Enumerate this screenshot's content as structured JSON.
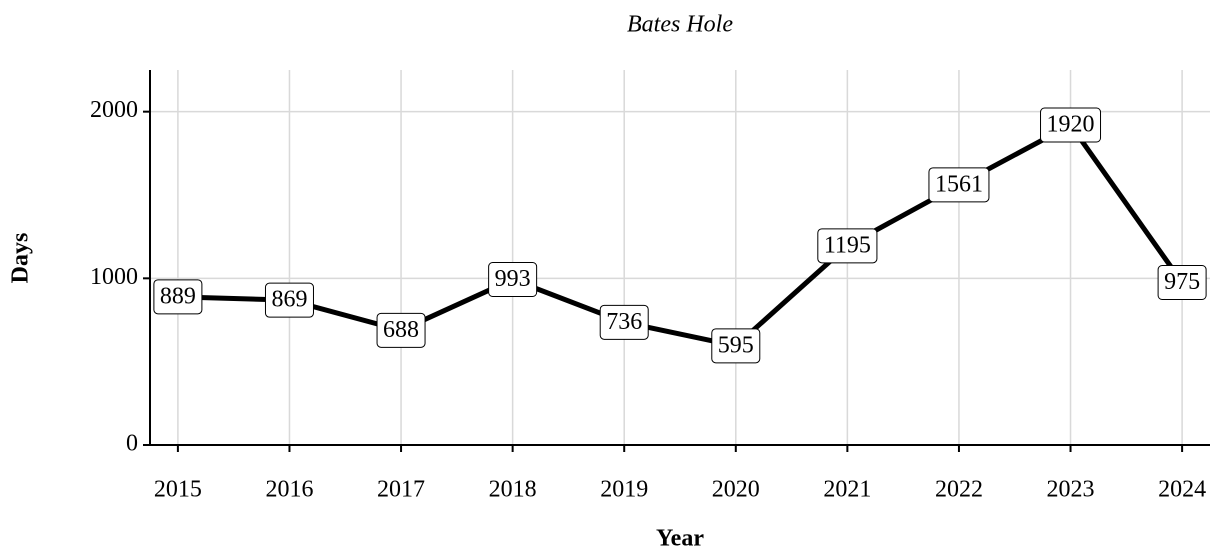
{
  "chart_data": {
    "type": "line",
    "title": "Bates Hole",
    "xlabel": "Year",
    "ylabel": "Days",
    "x": [
      2015,
      2016,
      2017,
      2018,
      2019,
      2020,
      2021,
      2022,
      2023,
      2024
    ],
    "series": [
      {
        "name": "Bates Hole",
        "color": "#000000",
        "values": [
          889,
          869,
          688,
          993,
          736,
          595,
          1195,
          1561,
          1920,
          975
        ]
      }
    ],
    "xlim": [
      2014.75,
      2024.25
    ],
    "xticks": [
      2015,
      2016,
      2017,
      2018,
      2019,
      2020,
      2021,
      2022,
      2023,
      2024
    ],
    "ylim": [
      0,
      2250
    ],
    "yticks": [
      0,
      1000,
      2000
    ],
    "grid": true
  }
}
